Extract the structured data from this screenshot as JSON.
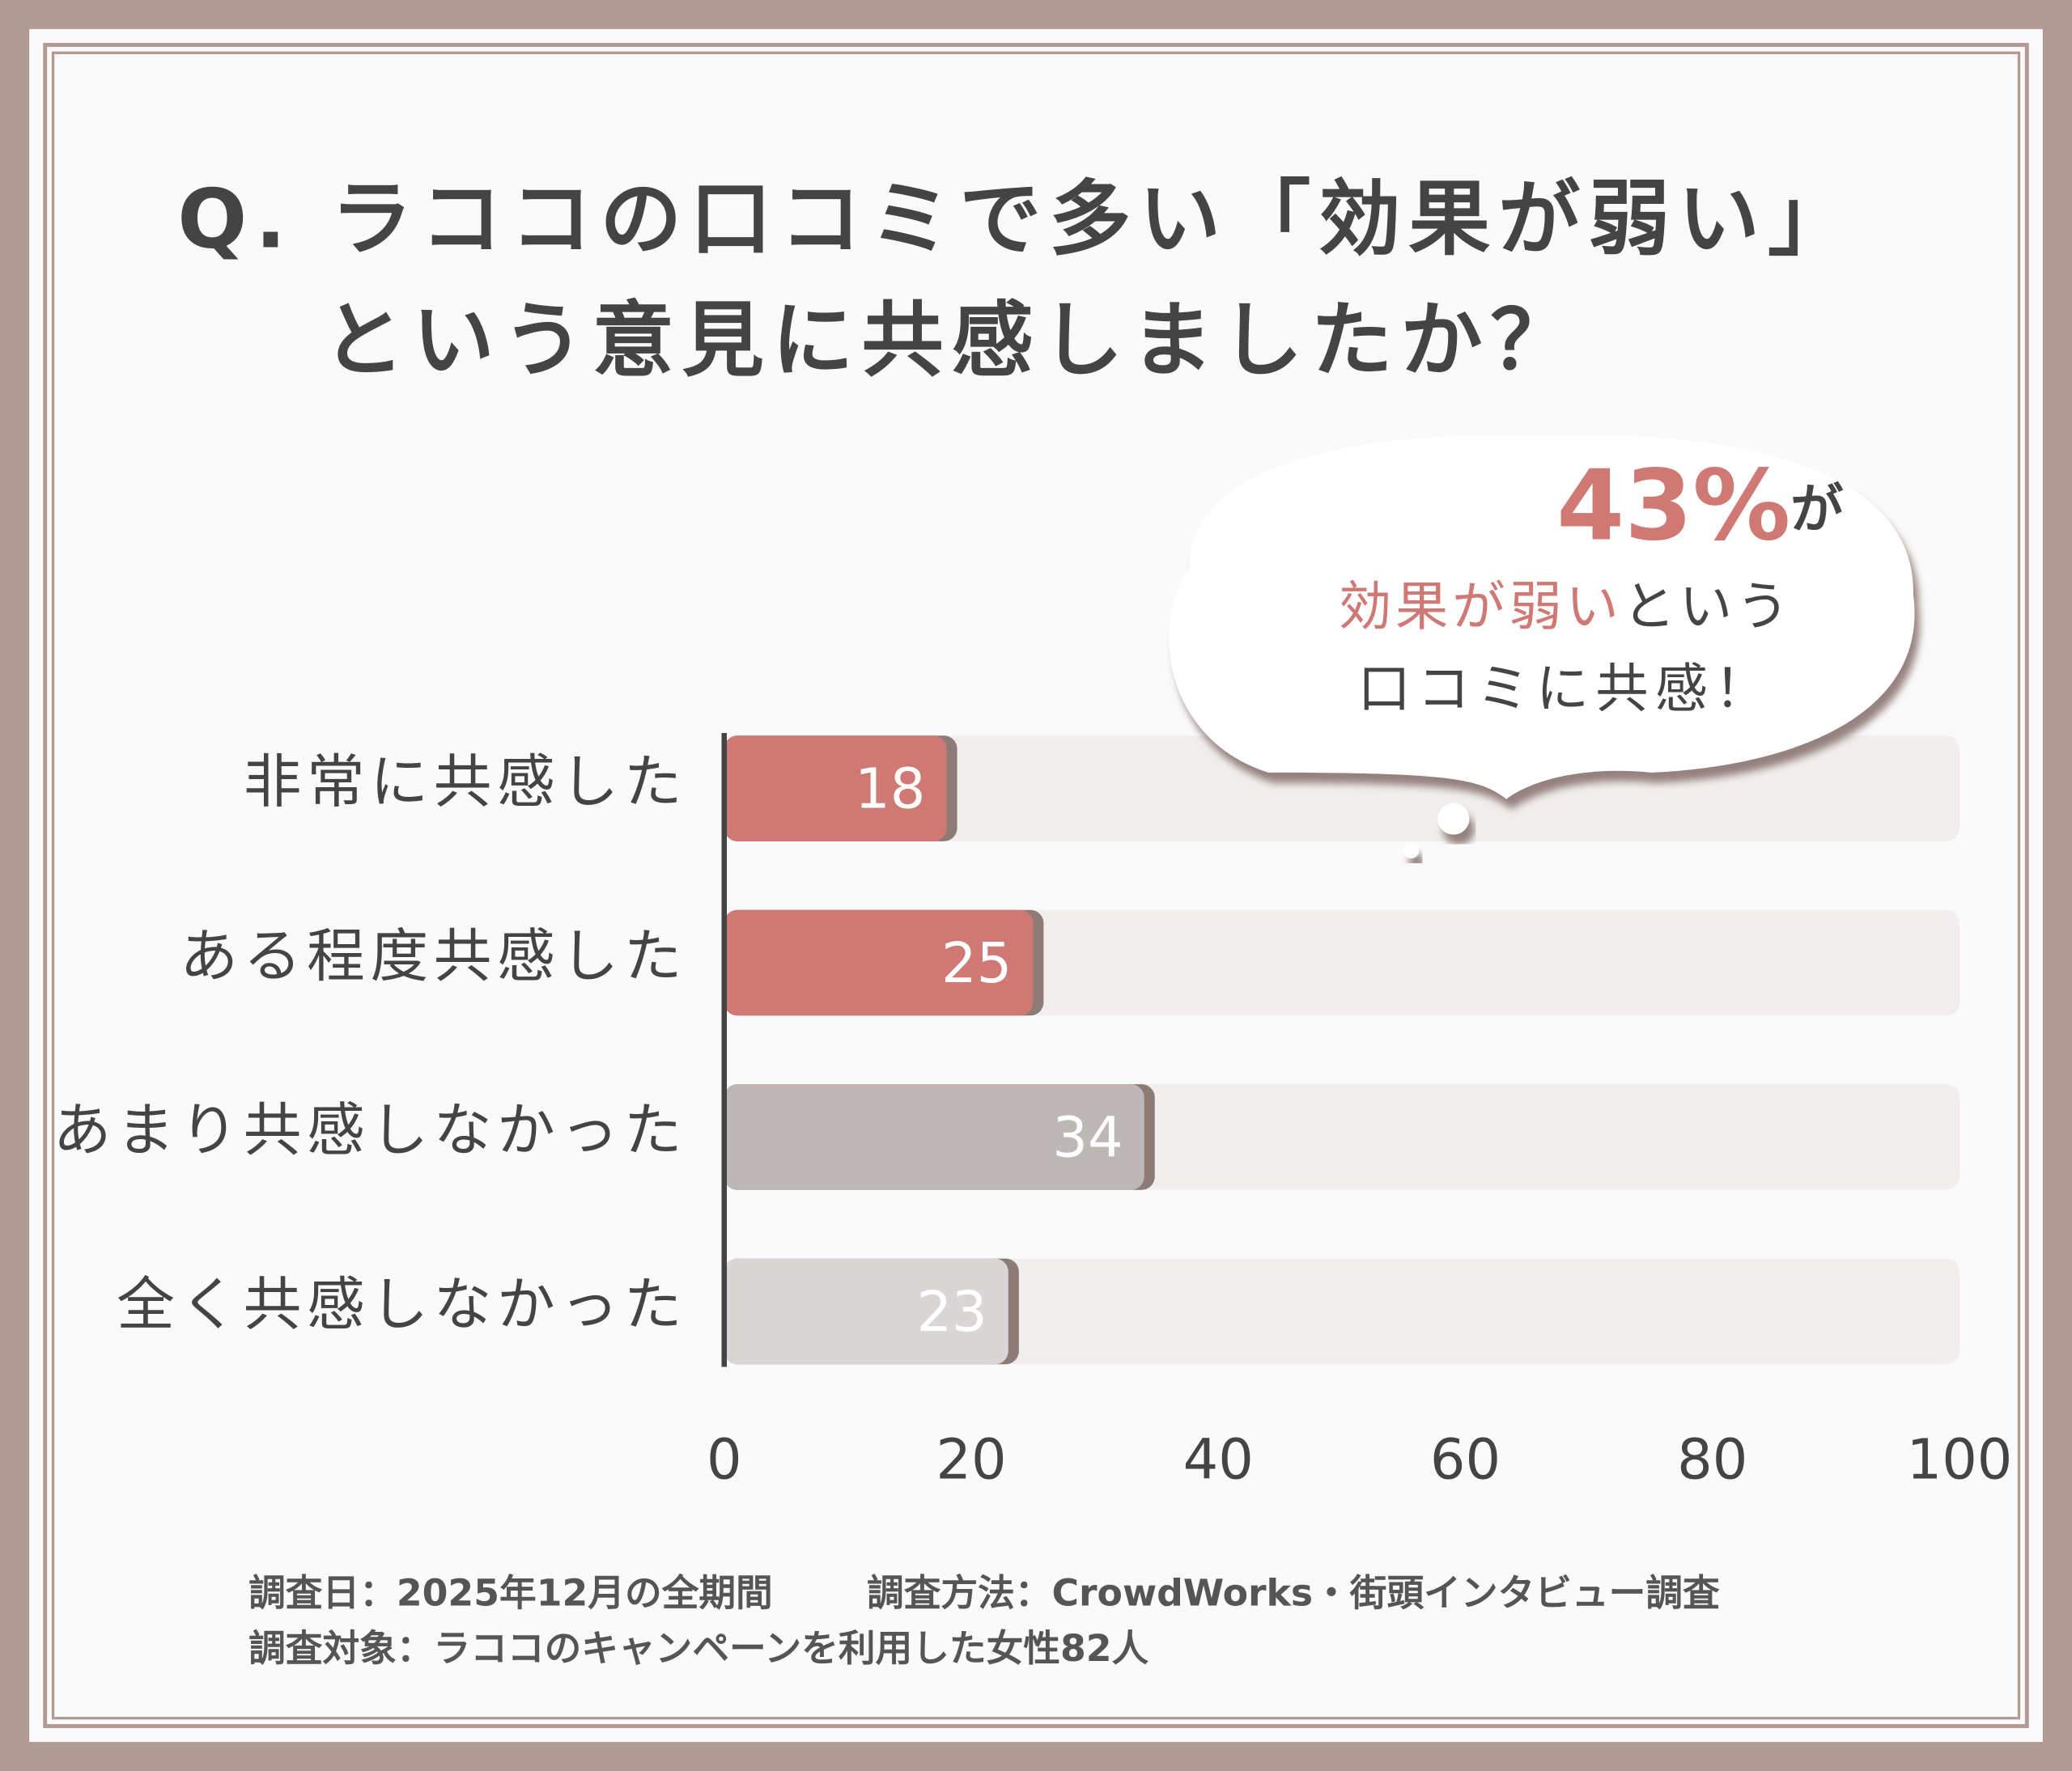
{
  "chart_data": {
    "type": "hbar",
    "title": [
      "Q. ラココの口コミで多い「効果が弱い」",
      "という意見に共感しましたか？"
    ],
    "categories": [
      "非常に共感した",
      "ある程度共感した",
      "あまり共感しなかった",
      "全く共感しなかった"
    ],
    "values": [
      18,
      25,
      34,
      23
    ],
    "colors": [
      "#d07873",
      "#d07873",
      "#bdb8b6",
      "#d9d6d5"
    ],
    "xlim": [
      0,
      100
    ],
    "xticks": [
      0,
      20,
      40,
      60,
      80,
      100
    ],
    "callout": {
      "highlight": "43%",
      "highlight_suffix": "が",
      "line2_highlight": "効果が弱い",
      "line2_rest": "という",
      "line3": "口コミに共感！"
    },
    "notes": [
      "調査日：2025年12月の全期間",
      "調査方法：CrowdWorks・街頭インタビュー調査",
      "調査対象：ラココのキャンペーンを利用した女性82人"
    ]
  }
}
